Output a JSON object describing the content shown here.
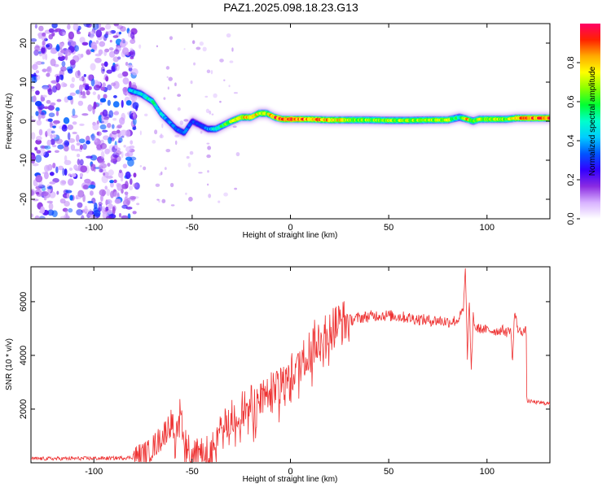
{
  "title": "PAZ1.2025.098.18.23.G13",
  "chart_data": [
    {
      "type": "heatmap",
      "xlabel": "Height of straight line (km)",
      "ylabel": "Frequency (Hz)",
      "xlim": [
        -132,
        132
      ],
      "ylim": [
        -25,
        25
      ],
      "xticks": [
        -100,
        -50,
        0,
        50,
        100
      ],
      "yticks": [
        -20,
        -10,
        0,
        10,
        20
      ],
      "colorbar": {
        "label": "Normalized spectral amplitude",
        "range": [
          0,
          1
        ],
        "ticks": [
          0.0,
          0.2,
          0.4,
          0.6,
          0.8
        ],
        "colormap": [
          "#ffffff",
          "#d8b2ff",
          "#8a2be2",
          "#3300ff",
          "#0055ff",
          "#00ccff",
          "#00ffcc",
          "#00ff33",
          "#88ff00",
          "#ffff00",
          "#ffaa00",
          "#ff2200",
          "#ff0066"
        ]
      },
      "ridge": {
        "x": [
          -82,
          -76,
          -70,
          -66,
          -62,
          -58,
          -54,
          -50,
          -46,
          -42,
          -38,
          -34,
          -30,
          -25,
          -20,
          -16,
          -12,
          -8,
          -4,
          0,
          10,
          20,
          30,
          40,
          50,
          60,
          70,
          80,
          86,
          90,
          93,
          96,
          100,
          105,
          110,
          115,
          120,
          125,
          132
        ],
        "y": [
          8,
          7,
          5,
          2,
          0,
          -2,
          -3,
          0,
          -1,
          -2,
          -2,
          -1,
          0,
          1,
          1,
          2,
          2,
          1,
          0.5,
          0.5,
          0.5,
          0.3,
          0.3,
          0.3,
          0.2,
          0.2,
          0.3,
          0.3,
          1,
          0.5,
          0,
          0.5,
          0.5,
          0.5,
          0.5,
          0.8,
          0.8,
          0.8,
          0.8
        ],
        "amplitude": [
          0.4,
          0.45,
          0.5,
          0.45,
          0.35,
          0.35,
          0.35,
          0.3,
          0.3,
          0.35,
          0.5,
          0.55,
          0.7,
          0.75,
          0.8,
          0.75,
          0.7,
          0.85,
          0.9,
          0.9,
          0.85,
          0.8,
          0.7,
          0.65,
          0.65,
          0.65,
          0.65,
          0.7,
          0.5,
          0.8,
          0.6,
          0.7,
          0.7,
          0.7,
          0.65,
          0.8,
          0.85,
          0.85,
          0.85
        ]
      },
      "noise_region": {
        "x": [
          -132,
          -78
        ],
        "y": [
          -25,
          25
        ]
      }
    },
    {
      "type": "line",
      "xlabel": "Height of straight line (km)",
      "ylabel": "SNR (10 * v/v)",
      "xlim": [
        -132,
        132
      ],
      "ylim": [
        0,
        7300
      ],
      "xticks": [
        -100,
        -50,
        0,
        50,
        100
      ],
      "yticks": [
        2000,
        4000,
        6000
      ],
      "color": "#ee3333",
      "series": [
        {
          "x": [
            -132,
            -110,
            -90,
            -80,
            -72,
            -65,
            -60,
            -56,
            -53,
            -50,
            -46,
            -42,
            -39,
            -35,
            -30,
            -25,
            -20,
            -15,
            -10,
            -5,
            0,
            5,
            10,
            15,
            20,
            25,
            30,
            35,
            40,
            45,
            50,
            55,
            60,
            65,
            70,
            75,
            80,
            85,
            88,
            89,
            90,
            91,
            92,
            93,
            94,
            96,
            100,
            105,
            108,
            110,
            112,
            113,
            114,
            116,
            120,
            119,
            120,
            121,
            125,
            132
          ],
          "y": [
            150,
            160,
            170,
            200,
            400,
            1000,
            1600,
            2000,
            700,
            400,
            350,
            500,
            800,
            1300,
            1700,
            2100,
            2300,
            2500,
            2800,
            3200,
            3500,
            3800,
            4300,
            4800,
            5000,
            5200,
            5300,
            5400,
            5450,
            5500,
            5480,
            5450,
            5400,
            5350,
            5300,
            5300,
            5250,
            5300,
            5700,
            7200,
            4000,
            6000,
            3300,
            5500,
            5000,
            5000,
            4950,
            4900,
            4950,
            4850,
            5000,
            3800,
            5600,
            4900,
            4900,
            4900,
            2300,
            2300,
            2250,
            2200
          ]
        }
      ]
    }
  ]
}
